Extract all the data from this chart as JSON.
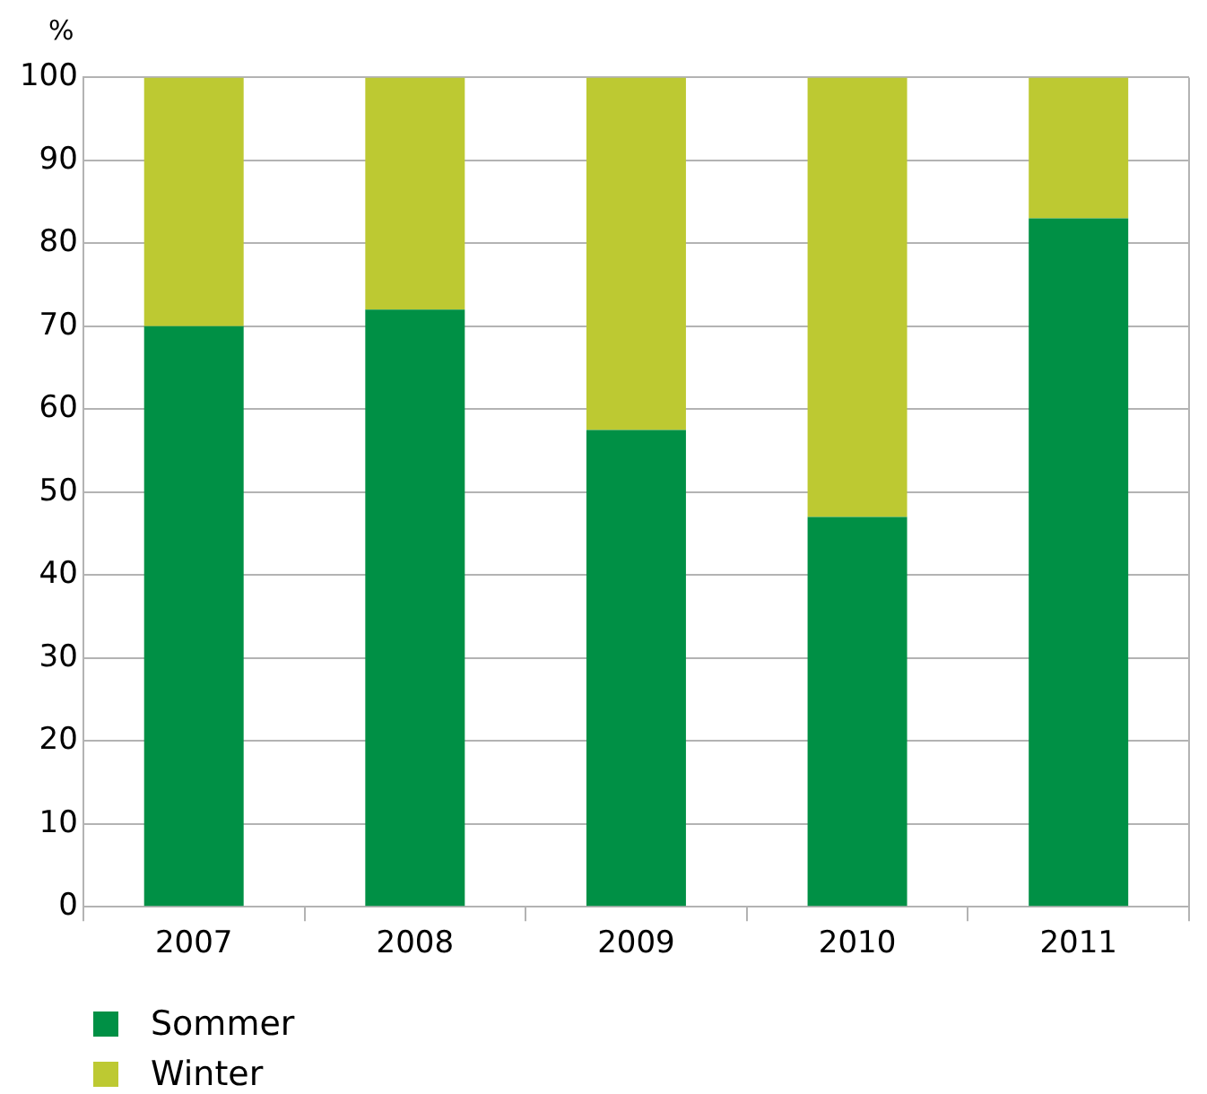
{
  "chart_data": {
    "type": "bar",
    "ylabel": "%",
    "categories": [
      "2007",
      "2008",
      "2009",
      "2010",
      "2011"
    ],
    "stacked": true,
    "series": [
      {
        "name": "Sommer",
        "color": "#009045",
        "values": [
          70,
          72,
          57.5,
          47,
          83
        ]
      },
      {
        "name": "Winter",
        "color": "#bdc932",
        "values": [
          30,
          28,
          42.5,
          53,
          17
        ]
      }
    ],
    "ylim": [
      0,
      100
    ],
    "yticks": [
      0,
      10,
      20,
      30,
      40,
      50,
      60,
      70,
      80,
      90,
      100
    ],
    "grid": "y",
    "legend": "bottom left"
  }
}
